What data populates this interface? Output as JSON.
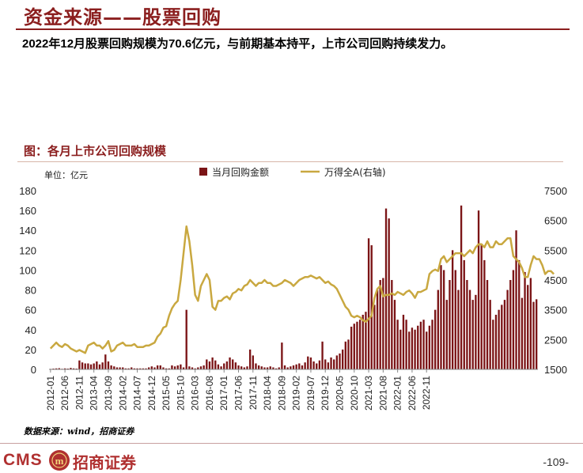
{
  "header": {
    "title": "资金来源——股票回购",
    "summary": "2022年12月股票回购规模为70.6亿元，与前期基本持平，上市公司回购持续发力。"
  },
  "chart_data": {
    "type": "bar",
    "title": "图：各月上市公司回购规模",
    "unit_label": "单位：亿元",
    "y_left_range": [
      0,
      180
    ],
    "y_left_ticks": [
      0,
      20,
      40,
      60,
      80,
      100,
      120,
      140,
      160,
      180
    ],
    "y_right_range": [
      1500,
      7500
    ],
    "y_right_ticks": [
      1500,
      2500,
      3500,
      4500,
      5500,
      6500,
      7500
    ],
    "x_tick_labels": [
      "2012-01",
      "2012-06",
      "2012-11",
      "2013-04",
      "2013-09",
      "2014-02",
      "2014-07",
      "2014-12",
      "2015-05",
      "2015-10",
      "2016-03",
      "2016-08",
      "2017-01",
      "2017-06",
      "2017-11",
      "2018-04",
      "2018-09",
      "2019-02",
      "2019-07",
      "2019-12",
      "2020-05",
      "2020-10",
      "2021-03",
      "2021-08",
      "2022-01",
      "2022-06",
      "2022-11"
    ],
    "x_tick_every": 5,
    "legend_position": "top",
    "colors": {
      "bars": "#7b1416",
      "line": "#c9a840"
    },
    "series": [
      {
        "name": "当月回购金额",
        "axis": "left",
        "type": "bar",
        "values": [
          0.5,
          0.8,
          1,
          1.2,
          0.6,
          1,
          0.8,
          1.5,
          1,
          0.8,
          9,
          7,
          6,
          6,
          5,
          6,
          8,
          5,
          7,
          15,
          8,
          4,
          3,
          2,
          2,
          2,
          1,
          1,
          2,
          1,
          1,
          1,
          1,
          1,
          2,
          3,
          2,
          4,
          4,
          2,
          1,
          1,
          4,
          3,
          4,
          5,
          2,
          60,
          3,
          2,
          1,
          2,
          3,
          4,
          10,
          8,
          12,
          9,
          5,
          3,
          6,
          8,
          12,
          10,
          7,
          4,
          3,
          2,
          3,
          20,
          14,
          6,
          4,
          3,
          2,
          2,
          3,
          2,
          1,
          2,
          27,
          4,
          2,
          3,
          4,
          5,
          6,
          4,
          7,
          13,
          12,
          8,
          6,
          9,
          28,
          10,
          7,
          12,
          10,
          14,
          16,
          20,
          28,
          30,
          43,
          46,
          48,
          50,
          55,
          58,
          132,
          125,
          65,
          80,
          90,
          92,
          162,
          152,
          90,
          70,
          50,
          40,
          55,
          50,
          38,
          42,
          40,
          44,
          48,
          50,
          38,
          44,
          50,
          60,
          80,
          105,
          100,
          70,
          90,
          120,
          100,
          80,
          165,
          110,
          90,
          80,
          70,
          75,
          160,
          125,
          110,
          90,
          70,
          50,
          55,
          60,
          65,
          70,
          80,
          90,
          100,
          140,
          110,
          72,
          98,
          85,
          92,
          68,
          70.6
        ]
      },
      {
        "name": "万得全A(右轴)",
        "axis": "right",
        "type": "line",
        "values": [
          2200,
          2300,
          2400,
          2300,
          2250,
          2350,
          2300,
          2200,
          2150,
          2100,
          2150,
          2100,
          2050,
          2300,
          2350,
          2400,
          2300,
          2300,
          2200,
          2300,
          2450,
          2100,
          2150,
          2300,
          2350,
          2400,
          2300,
          2300,
          2300,
          2350,
          2250,
          2250,
          2250,
          2300,
          2300,
          2350,
          2400,
          2600,
          2700,
          2900,
          2950,
          3300,
          3550,
          3700,
          3800,
          4500,
          5400,
          6300,
          5800,
          5000,
          4000,
          3800,
          4300,
          4500,
          4700,
          4500,
          3600,
          3500,
          3800,
          3800,
          3900,
          3950,
          3850,
          4050,
          4100,
          4200,
          4150,
          4300,
          4350,
          4500,
          4400,
          4300,
          4400,
          4400,
          4500,
          4400,
          4400,
          4300,
          4300,
          4350,
          4400,
          4500,
          4450,
          4400,
          4300,
          4400,
          4500,
          4550,
          4600,
          4600,
          4650,
          4600,
          4550,
          4600,
          4500,
          4400,
          4450,
          4350,
          4300,
          4200,
          4000,
          3800,
          3600,
          3500,
          3300,
          3250,
          3300,
          3250,
          3150,
          3100,
          3200,
          3300,
          3900,
          4200,
          4300,
          3950,
          4000,
          4000,
          4050,
          4000,
          4100,
          4050,
          4000,
          4100,
          4150,
          4050,
          3900,
          4100,
          4100,
          4150,
          4200,
          4700,
          4800,
          4850,
          4800,
          5200,
          5300,
          5100,
          5200,
          5300,
          5400,
          5400,
          5400,
          5300,
          5400,
          5500,
          5400,
          5600,
          5700,
          5700,
          5600,
          5800,
          5600,
          5600,
          5800,
          5700,
          5700,
          5800,
          5900,
          5900,
          5300,
          5200,
          5100,
          4900,
          4600,
          4600,
          5000,
          5300,
          5200,
          5200,
          5000,
          4700,
          4800,
          4800,
          4700
        ]
      }
    ]
  },
  "source": "数据来源：wind，招商证券",
  "footer": {
    "logo_text": "CMS",
    "logo_badge": "m",
    "brand_cn": "招商证券",
    "page_number": "-109-"
  }
}
